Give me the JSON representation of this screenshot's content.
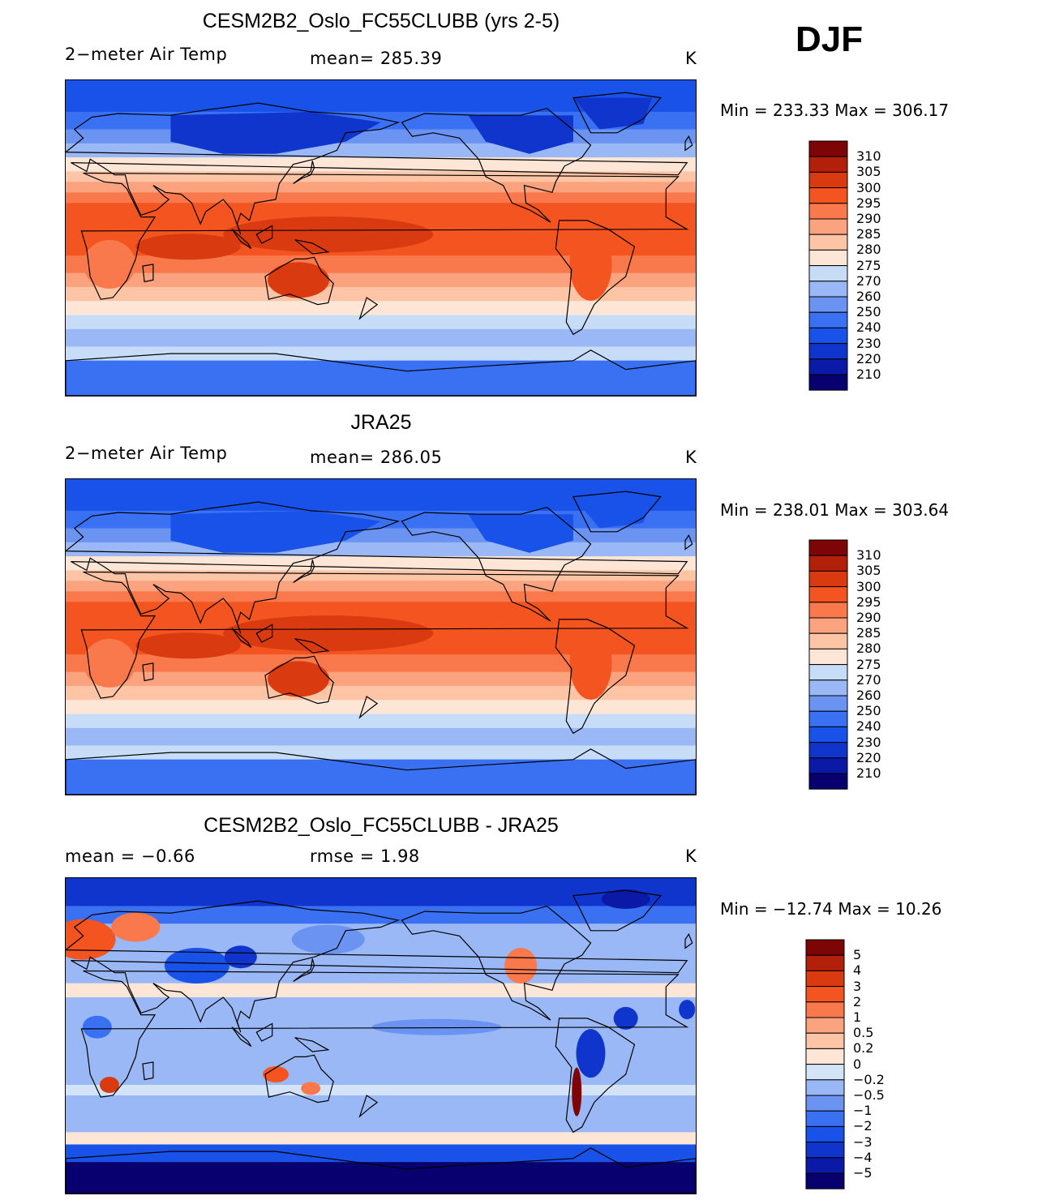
{
  "season": "DJF",
  "colors": {
    "abs": [
      "#08006f",
      "#0a1aa6",
      "#0f35cc",
      "#1852e8",
      "#3a70f2",
      "#6a93f2",
      "#9ab8f5",
      "#c7dcf7",
      "#fde6d6",
      "#fdc5a6",
      "#fba27f",
      "#f9794c",
      "#f4541f",
      "#d93a0f",
      "#b3200a",
      "#7d0505"
    ],
    "diff": [
      "#08006f",
      "#0a1aa6",
      "#0f35cc",
      "#1852e8",
      "#3a70f2",
      "#6a93f2",
      "#9ab8f5",
      "#d4e4f8",
      "#fde6d6",
      "#fdc5a6",
      "#fba27f",
      "#f9794c",
      "#f4541f",
      "#d93a0f",
      "#b3200a",
      "#7d0505"
    ]
  },
  "panels": [
    {
      "title": "CESM2B2_Oslo_FC55CLUBB (yrs 2-5)",
      "left_label": "2−meter Air Temp",
      "center_label": "mean=  285.39",
      "units": "K",
      "minmax": "Min  =  233.33  Max  =  306.17",
      "chart_data": {
        "type": "heatmap",
        "title": "CESM2B2_Oslo_FC55CLUBB (yrs 2-5)",
        "variable": "2-meter Air Temp",
        "units": "K",
        "mean": 285.39,
        "min": 233.33,
        "max": 306.17,
        "contour_levels": [
          210,
          220,
          230,
          240,
          250,
          260,
          270,
          275,
          280,
          285,
          290,
          295,
          300,
          305,
          310
        ]
      },
      "colorbar_labels": [
        "310",
        "305",
        "300",
        "295",
        "290",
        "285",
        "280",
        "275",
        "270",
        "260",
        "250",
        "240",
        "230",
        "220",
        "210"
      ]
    },
    {
      "title": "JRA25",
      "left_label": "2−meter Air Temp",
      "center_label": "mean=  286.05",
      "units": "K",
      "minmax": "Min  =  238.01  Max  =  303.64",
      "chart_data": {
        "type": "heatmap",
        "title": "JRA25",
        "variable": "2-meter Air Temp",
        "units": "K",
        "mean": 286.05,
        "min": 238.01,
        "max": 303.64,
        "contour_levels": [
          210,
          220,
          230,
          240,
          250,
          260,
          270,
          275,
          280,
          285,
          290,
          295,
          300,
          305,
          310
        ]
      },
      "colorbar_labels": [
        "310",
        "305",
        "300",
        "295",
        "290",
        "285",
        "280",
        "275",
        "270",
        "260",
        "250",
        "240",
        "230",
        "220",
        "210"
      ]
    },
    {
      "title": "CESM2B2_Oslo_FC55CLUBB - JRA25",
      "left_label": "mean  =    −0.66",
      "center_label": "rmse  =     1.98",
      "units": "K",
      "minmax": "Min  =  −12.74  Max  =    10.26",
      "chart_data": {
        "type": "heatmap",
        "title": "CESM2B2_Oslo_FC55CLUBB - JRA25",
        "units": "K",
        "mean": -0.66,
        "rmse": 1.98,
        "min": -12.74,
        "max": 10.26,
        "contour_levels": [
          -5,
          -4,
          -3,
          -2,
          -1,
          -0.5,
          -0.2,
          0,
          0.2,
          0.5,
          1,
          2,
          3,
          4,
          5
        ]
      },
      "colorbar_labels": [
        "5",
        "4",
        "3",
        "2",
        "1",
        "0.5",
        "0.2",
        "0",
        "−0.2",
        "−0.5",
        "−1",
        "−2",
        "−3",
        "−4",
        "−5"
      ]
    }
  ]
}
